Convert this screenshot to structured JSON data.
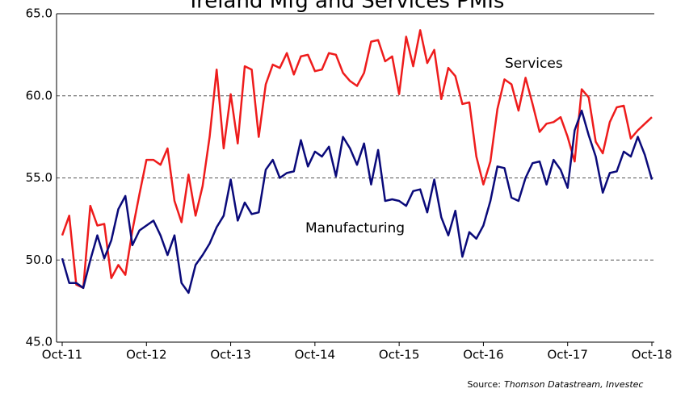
{
  "chart_data": {
    "type": "line",
    "title": "Ireland Mfg and Services PMIs",
    "source_label": "Source:",
    "source": "Thomson Datastream, Investec",
    "categories": [
      "Oct-11",
      null,
      null,
      null,
      null,
      null,
      null,
      null,
      null,
      null,
      null,
      null,
      "Oct-12",
      null,
      null,
      null,
      null,
      null,
      null,
      null,
      null,
      null,
      null,
      null,
      "Oct-13",
      null,
      null,
      null,
      null,
      null,
      null,
      null,
      null,
      null,
      null,
      null,
      "Oct-14",
      null,
      null,
      null,
      null,
      null,
      null,
      null,
      null,
      null,
      null,
      null,
      "Oct-15",
      null,
      null,
      null,
      null,
      null,
      null,
      null,
      null,
      null,
      null,
      null,
      "Oct-16",
      null,
      null,
      null,
      null,
      null,
      null,
      null,
      null,
      null,
      null,
      null,
      "Oct-17",
      null,
      null,
      null,
      null,
      null,
      null,
      null,
      null,
      null,
      null,
      null,
      "Oct-18"
    ],
    "series": [
      {
        "name": "Services",
        "color": "#ee1c1c",
        "values": [
          51.5,
          52.7,
          48.5,
          48.3,
          53.3,
          52.1,
          52.2,
          48.9,
          49.7,
          49.1,
          51.8,
          54.0,
          56.1,
          56.1,
          55.8,
          56.8,
          53.6,
          52.3,
          55.2,
          52.7,
          54.5,
          57.5,
          61.6,
          56.8,
          60.1,
          57.1,
          61.8,
          61.6,
          57.5,
          60.7,
          61.9,
          61.7,
          62.6,
          61.3,
          62.4,
          62.5,
          61.5,
          61.6,
          62.6,
          62.5,
          61.4,
          60.9,
          60.6,
          61.4,
          63.3,
          63.4,
          62.1,
          62.4,
          60.1,
          63.6,
          61.8,
          64.0,
          62.0,
          62.8,
          59.8,
          61.7,
          61.2,
          59.5,
          59.6,
          56.3,
          54.6,
          56.0,
          59.2,
          61.0,
          60.7,
          59.1,
          61.1,
          59.5,
          57.8,
          58.3,
          58.4,
          58.7,
          57.5,
          56.0,
          60.4,
          59.9,
          57.2,
          56.5,
          58.4,
          59.3,
          59.4,
          57.4,
          57.9,
          58.3,
          58.7
        ]
      },
      {
        "name": "Manufacturing",
        "color": "#0a0a7a",
        "values": [
          50.1,
          48.6,
          48.6,
          48.3,
          50.0,
          51.5,
          50.1,
          51.2,
          53.1,
          53.9,
          50.9,
          51.8,
          52.1,
          52.4,
          51.5,
          50.3,
          51.5,
          48.6,
          48.0,
          49.7,
          50.3,
          51.0,
          52.0,
          52.7,
          54.9,
          52.4,
          53.5,
          52.8,
          52.9,
          55.5,
          56.1,
          55.0,
          55.3,
          55.4,
          57.3,
          55.7,
          56.6,
          56.3,
          56.9,
          55.1,
          57.5,
          56.8,
          55.8,
          57.1,
          54.6,
          56.7,
          53.6,
          53.7,
          53.6,
          53.3,
          54.2,
          54.3,
          52.9,
          54.9,
          52.6,
          51.5,
          53.0,
          50.2,
          51.7,
          51.3,
          52.1,
          53.6,
          55.7,
          55.6,
          53.8,
          53.6,
          55.0,
          55.9,
          56.0,
          54.6,
          56.1,
          55.5,
          54.4,
          57.9,
          59.1,
          57.6,
          56.3,
          54.1,
          55.3,
          55.4,
          56.6,
          56.3,
          57.5,
          56.4,
          54.9
        ]
      }
    ],
    "ylim": [
      45,
      65
    ],
    "yticks": [
      {
        "value": 45,
        "label": "45.0"
      },
      {
        "value": 50,
        "label": "50.0"
      },
      {
        "value": 55,
        "label": "55.0"
      },
      {
        "value": 60,
        "label": "60.0"
      },
      {
        "value": 65,
        "label": "65.0"
      }
    ],
    "grid": true
  }
}
